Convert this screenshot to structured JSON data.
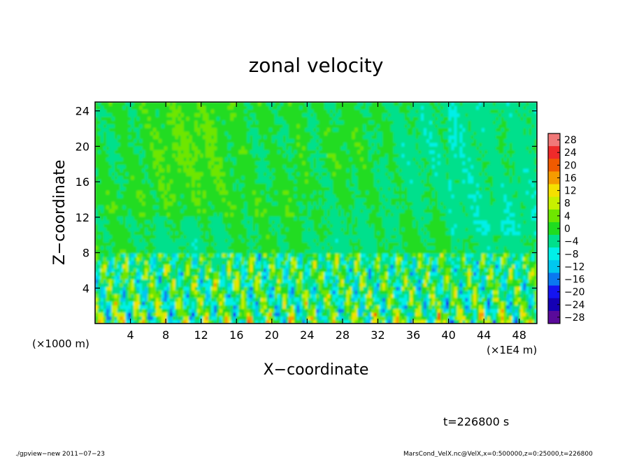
{
  "chart_data": {
    "type": "heatmap",
    "title": "zonal velocity",
    "xlabel": "X−coordinate",
    "ylabel": "Z−coordinate",
    "x_unit_label": "(×1E4 m)",
    "y_unit_label": "(×1000 m)",
    "xlim": [
      0,
      50
    ],
    "ylim": [
      0,
      25
    ],
    "x_ticks": [
      4,
      8,
      12,
      16,
      20,
      24,
      28,
      32,
      36,
      40,
      44,
      48
    ],
    "x_tick_labels": [
      "4",
      "8",
      "12",
      "16",
      "20",
      "24",
      "28",
      "32",
      "36",
      "40",
      "44",
      "48"
    ],
    "y_ticks": [
      4,
      8,
      12,
      16,
      20,
      24
    ],
    "y_tick_labels": [
      "4",
      "8",
      "12",
      "16",
      "20",
      "24"
    ],
    "colorbar": {
      "levels": [
        28,
        24,
        20,
        16,
        12,
        8,
        4,
        0,
        -4,
        -8,
        -12,
        -16,
        -20,
        -24,
        -28
      ],
      "labels": [
        "28",
        "24",
        "20",
        "16",
        "12",
        "8",
        "4",
        "0",
        "−4",
        "−8",
        "−12",
        "−16",
        "−20",
        "−24",
        "−28"
      ],
      "colors": [
        "#f07878",
        "#ee2a2a",
        "#f05a00",
        "#f59b00",
        "#f5e000",
        "#c8f000",
        "#6ee600",
        "#20dc20",
        "#00e08c",
        "#00f0e8",
        "#00c8f0",
        "#0a78f0",
        "#1414f0",
        "#1400b4",
        "#5a0a9a"
      ]
    },
    "field_description": {
      "upper_layer_z_range": [
        8,
        25
      ],
      "upper_layer_value_range": [
        -4,
        4
      ],
      "lower_layer_z_range": [
        0,
        8
      ],
      "lower_layer_value_range": [
        -12,
        12
      ]
    }
  },
  "annotation": "t=226800 s",
  "footer": {
    "left": "./gpview−new   2011−07−23",
    "right": "MarsCond_VelX.nc@VelX,x=0:500000,z=0:25000,t=226800"
  }
}
